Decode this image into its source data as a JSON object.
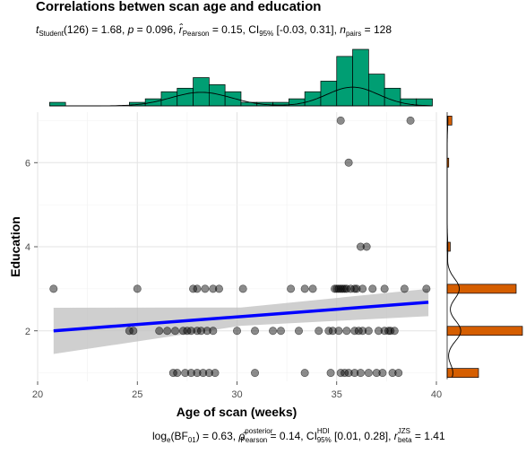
{
  "chart_data": {
    "type": "scatter",
    "title": "Correlations betwen scan age and education",
    "subtitle": {
      "t_label": "t",
      "t_sub": "Student",
      "t_value": "(126) = 1.68, ",
      "p_label": "p",
      "p_value": " = 0.096, ",
      "r_label": "r̂",
      "r_sub": "Pearson",
      "r_value": " = 0.15, CI",
      "ci_sub": "95%",
      "ci_value": " [-0.03, 0.31], ",
      "n_label": "n",
      "n_sub": "pairs",
      "n_value": " = 128"
    },
    "caption": {
      "bf_label": "log",
      "bf_sub": "e",
      "bf_value": "(BF",
      "bf_sub2": "01",
      "bf_tail": ") = 0.63, ",
      "rho_label": "ρ̂",
      "rho_sup": "posterior",
      "rho_sub": "Pearson",
      "rho_value": " = 0.14, CI",
      "ci_sup": "HDI",
      "ci_sub": "95%",
      "ci_value": " [0.01, 0.28], ",
      "rb_label": "r",
      "rb_sup": "JZS",
      "rb_sub": "beta",
      "rb_value": " = 1.41"
    },
    "xlabel": "Age of scan (weeks)",
    "ylabel": "Education",
    "xlim": [
      20,
      40
    ],
    "ylim": [
      0.8,
      7.2
    ],
    "x_ticks": [
      "20",
      "25",
      "30",
      "35",
      "40"
    ],
    "y_ticks": [
      "2",
      "4",
      "6"
    ],
    "grid": true,
    "points": [
      [
        20.8,
        3
      ],
      [
        25.0,
        3
      ],
      [
        27.8,
        3
      ],
      [
        28.0,
        3
      ],
      [
        28.4,
        3
      ],
      [
        28.8,
        3
      ],
      [
        29.1,
        3
      ],
      [
        30.3,
        3
      ],
      [
        32.7,
        3
      ],
      [
        33.4,
        3
      ],
      [
        33.8,
        3
      ],
      [
        34.9,
        3
      ],
      [
        35.0,
        3
      ],
      [
        35.1,
        3
      ],
      [
        35.2,
        3
      ],
      [
        35.3,
        3
      ],
      [
        35.4,
        3
      ],
      [
        35.5,
        3
      ],
      [
        35.7,
        3
      ],
      [
        35.9,
        3
      ],
      [
        36.0,
        3
      ],
      [
        36.3,
        3
      ],
      [
        36.8,
        3
      ],
      [
        37.4,
        3
      ],
      [
        38.4,
        3
      ],
      [
        39.5,
        3
      ],
      [
        24.6,
        2
      ],
      [
        24.8,
        2
      ],
      [
        26.1,
        2
      ],
      [
        26.5,
        2
      ],
      [
        26.9,
        2
      ],
      [
        27.3,
        2
      ],
      [
        27.5,
        2
      ],
      [
        27.7,
        2
      ],
      [
        28.0,
        2
      ],
      [
        28.2,
        2
      ],
      [
        28.5,
        2
      ],
      [
        28.8,
        2
      ],
      [
        30.0,
        2
      ],
      [
        30.9,
        2
      ],
      [
        31.8,
        2
      ],
      [
        32.2,
        2
      ],
      [
        33.1,
        2
      ],
      [
        34.1,
        2
      ],
      [
        34.6,
        2
      ],
      [
        34.8,
        2
      ],
      [
        35.1,
        2
      ],
      [
        35.5,
        2
      ],
      [
        35.9,
        2
      ],
      [
        36.1,
        2
      ],
      [
        36.3,
        2
      ],
      [
        36.6,
        2
      ],
      [
        37.1,
        2
      ],
      [
        37.4,
        2
      ],
      [
        37.6,
        2
      ],
      [
        37.7,
        2
      ],
      [
        37.9,
        2
      ],
      [
        26.8,
        1
      ],
      [
        27.0,
        1
      ],
      [
        27.4,
        1
      ],
      [
        27.7,
        1
      ],
      [
        28.0,
        1
      ],
      [
        28.3,
        1
      ],
      [
        28.6,
        1
      ],
      [
        28.9,
        1
      ],
      [
        30.9,
        1
      ],
      [
        33.4,
        1
      ],
      [
        34.7,
        1
      ],
      [
        35.2,
        1
      ],
      [
        35.4,
        1
      ],
      [
        35.6,
        1
      ],
      [
        35.9,
        1
      ],
      [
        36.2,
        1
      ],
      [
        36.6,
        1
      ],
      [
        37.0,
        1
      ],
      [
        37.3,
        1
      ],
      [
        37.8,
        1
      ],
      [
        38.1,
        1
      ],
      [
        36.2,
        4
      ],
      [
        36.5,
        4
      ],
      [
        35.6,
        6
      ],
      [
        35.2,
        7
      ],
      [
        38.7,
        7
      ]
    ],
    "regression": {
      "x_start": 20.8,
      "y_start": 2.0,
      "x_end": 39.6,
      "y_end": 2.68,
      "color": "#0000ff"
    },
    "confidence_band": {
      "color": "#bfbfbf",
      "lower_start": 1.45,
      "upper_start": 2.55,
      "lower_end": 2.35,
      "upper_end": 3.0
    },
    "x_histogram": {
      "color": "#009e73",
      "bin_starts": [
        20.6,
        21.4,
        22.2,
        23.0,
        23.8,
        24.6,
        25.4,
        26.2,
        27.0,
        27.8,
        28.6,
        29.4,
        30.2,
        31.0,
        31.8,
        32.6,
        33.4,
        34.2,
        35.0,
        35.8,
        36.6,
        37.4,
        38.2,
        39.0
      ],
      "bin_width": 0.8,
      "counts": [
        1,
        0,
        0,
        0,
        0,
        1,
        2,
        4,
        5,
        8,
        6,
        4,
        1,
        1,
        1,
        2,
        4,
        7,
        14,
        16,
        9,
        5,
        2,
        2
      ]
    },
    "y_histogram": {
      "color": "#d55e00",
      "categories": [
        1,
        2,
        3,
        4,
        6,
        7
      ],
      "counts": [
        20,
        48,
        44,
        2,
        1,
        3
      ]
    }
  }
}
